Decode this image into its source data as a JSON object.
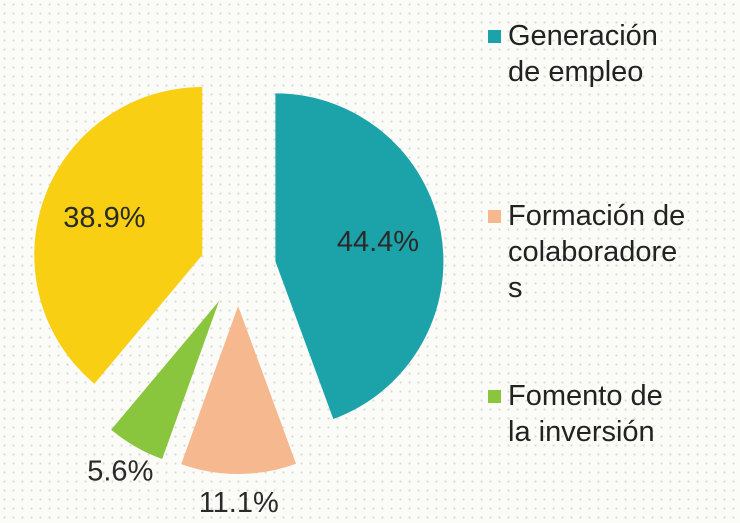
{
  "chart_data": {
    "type": "pie",
    "categories": [
      "Generación de empleo",
      "Formación de colaboradores",
      "Fomento de la inversión",
      null
    ],
    "values": [
      44.4,
      11.1,
      5.6,
      38.9
    ],
    "value_labels": [
      "44.4%",
      "11.1%",
      "5.6%",
      "38.9%"
    ],
    "colors": [
      "#1ba3a9",
      "#f6b98f",
      "#8ac53e",
      "#f8cf12"
    ],
    "legend": "right"
  }
}
